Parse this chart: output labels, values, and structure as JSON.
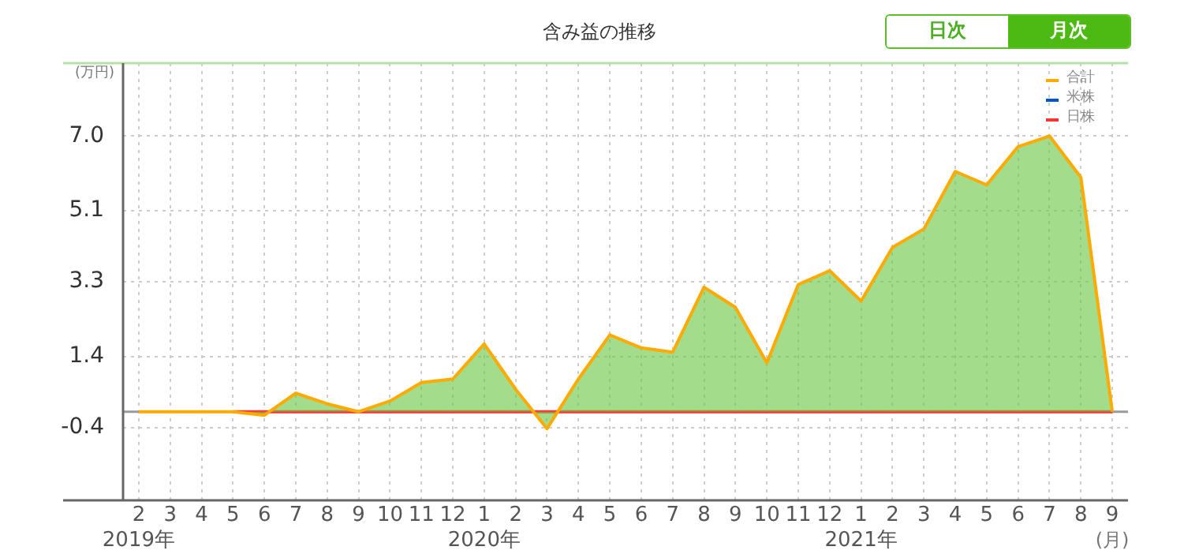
{
  "chart_data": {
    "type": "area",
    "title": "含み益の推移",
    "ylabel": "(万円)",
    "xlabel": "(月)",
    "annotations": [
      "日次",
      "月次"
    ],
    "categories": [
      "2\n2019年",
      "3",
      "4",
      "5",
      "6",
      "7",
      "8",
      "9",
      "10",
      "11",
      "12",
      "1\n2020年",
      "2",
      "3",
      "4",
      "5",
      "6",
      "7",
      "8",
      "9",
      "10",
      "11",
      "12",
      "1\n2021年",
      "2",
      "3",
      "4",
      "5",
      "6",
      "7",
      "8",
      "9"
    ],
    "series": [
      {
        "name": "合計",
        "type": "area",
        "color": "#ffaa00",
        "values": [
          0,
          0,
          0,
          0,
          -0.09,
          0.47,
          0.2,
          0,
          0.27,
          0.74,
          0.83,
          1.72,
          0.57,
          -0.43,
          0.83,
          1.95,
          1.62,
          1.51,
          3.16,
          2.65,
          1.24,
          3.23,
          3.58,
          2.81,
          4.17,
          4.64,
          6.1,
          5.76,
          6.73,
          7.0,
          5.95,
          0
        ]
      },
      {
        "name": "米株",
        "type": "line",
        "color": "#0055cc",
        "values": [
          null,
          null,
          null,
          null,
          null,
          null,
          null,
          null,
          null,
          null,
          null,
          null,
          null,
          null,
          null,
          null,
          null,
          null,
          null,
          null,
          null,
          null,
          null,
          null,
          null,
          null,
          null,
          null,
          null,
          null,
          null,
          null
        ]
      },
      {
        "name": "日株",
        "type": "line",
        "color": "#ff3333",
        "values": [
          null,
          null,
          null,
          0,
          0,
          0,
          0,
          0,
          0,
          0,
          0,
          0,
          0,
          0,
          0,
          0,
          0,
          0,
          0,
          0,
          0,
          0,
          0,
          0,
          0,
          0,
          0,
          0,
          0,
          0,
          0,
          0
        ]
      }
    ],
    "ylim": [
      -2.25,
      8.85
    ],
    "yticks": [
      -0.4,
      1.4,
      3.3,
      5.1,
      {
        "value": 7,
        "label": "7.0"
      }
    ],
    "ref_lines": [
      {
        "axis": "y",
        "value": 0,
        "color": "#999999"
      }
    ],
    "grid": true,
    "legend": "top right",
    "marker": "none",
    "line_style": "solid"
  }
}
